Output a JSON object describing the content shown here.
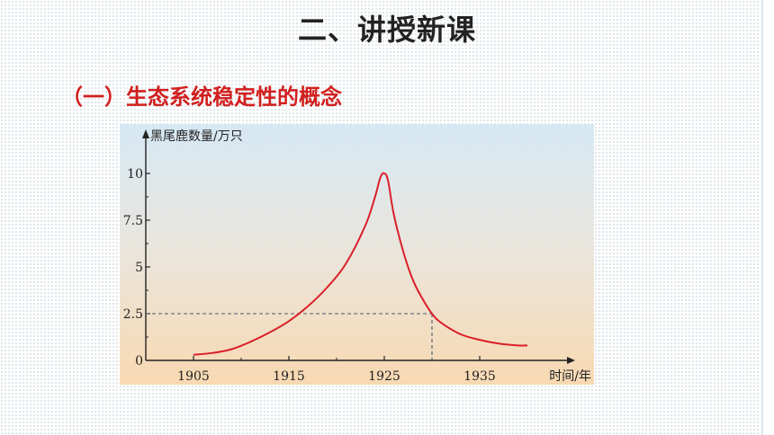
{
  "slide": {
    "title": "二、讲授新课",
    "section": "（一）生态系统稳定性的概念"
  },
  "chart_data": {
    "type": "line",
    "title": "",
    "xlabel": "时间/年",
    "ylabel": "黑尾鹿数量/万只",
    "x_ticks": [
      "1905",
      "1915",
      "1925",
      "1935"
    ],
    "y_ticks": [
      "0",
      "2.5",
      "5",
      "7.5",
      "10"
    ],
    "xlim": [
      1900,
      1941
    ],
    "ylim": [
      0,
      10.5
    ],
    "series": [
      {
        "color": "#d9202a",
        "points": [
          [
            1905,
            0.3
          ],
          [
            1907,
            0.4
          ],
          [
            1909,
            0.6
          ],
          [
            1911,
            1.0
          ],
          [
            1913,
            1.5
          ],
          [
            1915,
            2.1
          ],
          [
            1917,
            2.9
          ],
          [
            1919,
            3.9
          ],
          [
            1921,
            5.2
          ],
          [
            1923,
            7.2
          ],
          [
            1924,
            8.7
          ],
          [
            1924.6,
            9.8
          ],
          [
            1925,
            10.0
          ],
          [
            1925.4,
            9.6
          ],
          [
            1926,
            7.8
          ],
          [
            1927,
            5.8
          ],
          [
            1928,
            4.3
          ],
          [
            1929,
            3.3
          ],
          [
            1930,
            2.5
          ],
          [
            1931,
            2.0
          ],
          [
            1933,
            1.4
          ],
          [
            1935,
            1.1
          ],
          [
            1937,
            0.9
          ],
          [
            1939,
            0.8
          ],
          [
            1940,
            0.8
          ]
        ]
      }
    ],
    "reference": {
      "x": 1930,
      "y": 2.5,
      "style": "dashed"
    },
    "grid": false
  }
}
